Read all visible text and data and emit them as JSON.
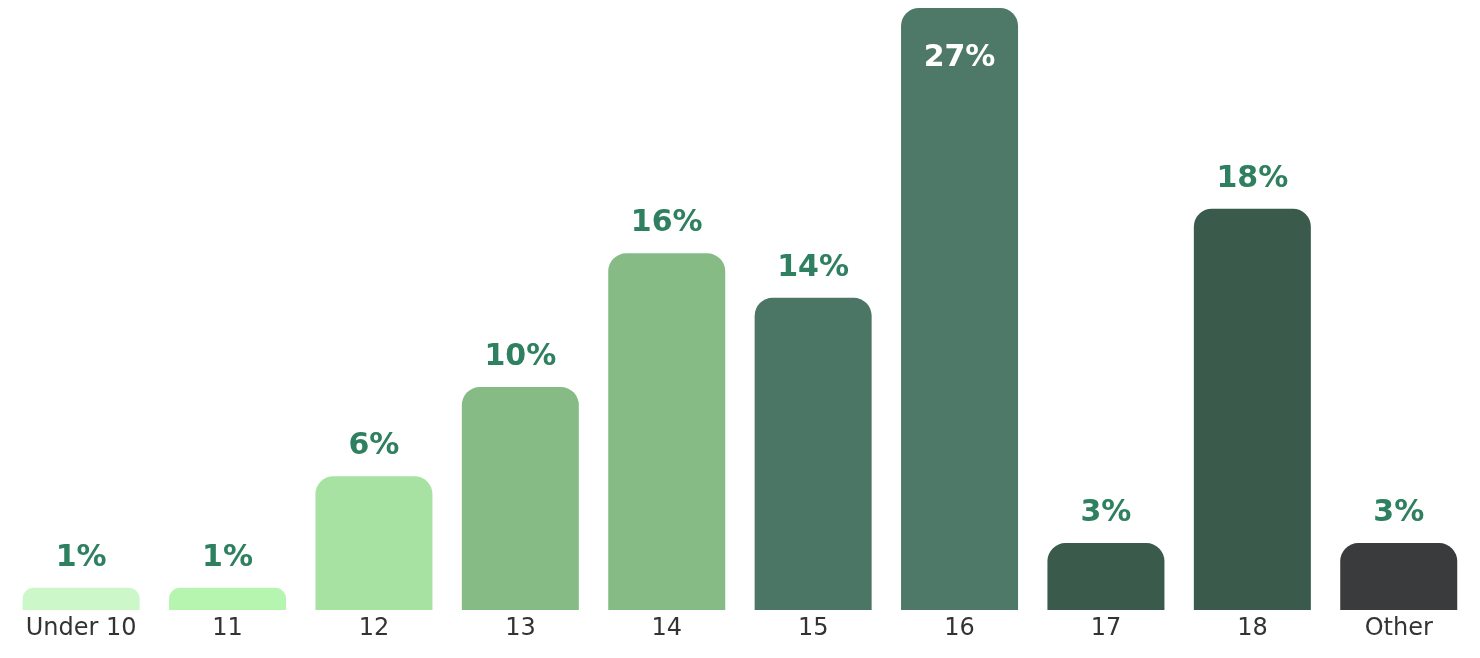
{
  "chart_data": {
    "type": "bar",
    "categories": [
      "Under 10",
      "11",
      "12",
      "13",
      "14",
      "15",
      "16",
      "17",
      "18",
      "Other"
    ],
    "values": [
      1,
      1,
      6,
      10,
      16,
      14,
      27,
      3,
      18,
      3
    ],
    "colors": [
      "#ccf7c8",
      "#b5f5b0",
      "#a8e2a3",
      "#87bb85",
      "#87bb85",
      "#4b7565",
      "#4e7868",
      "#3a5a4c",
      "#3a5a4c",
      "#3a3b3c"
    ],
    "value_labels": [
      "1%",
      "1%",
      "6%",
      "10%",
      "16%",
      "14%",
      "27%",
      "3%",
      "18%",
      "3%"
    ],
    "grid": false,
    "legend": false
  }
}
